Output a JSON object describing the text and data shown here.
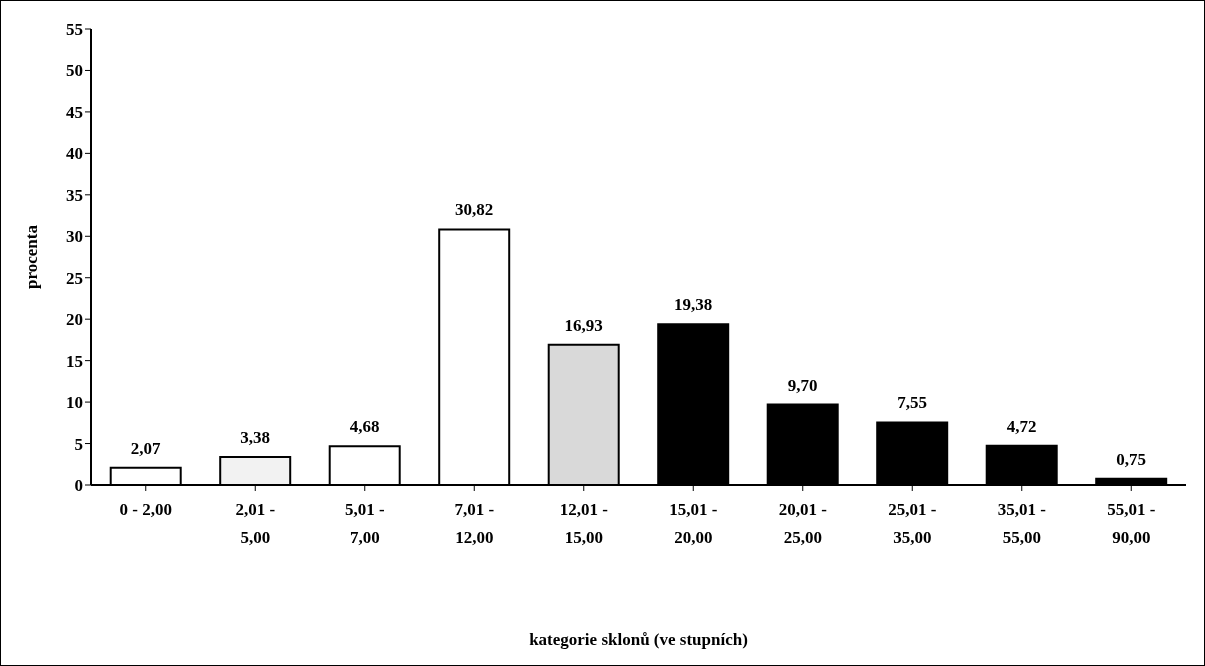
{
  "chart_data": {
    "type": "bar",
    "xlabel": "kategorie sklonů (ve stupních)",
    "ylabel": "procenta",
    "categories": [
      "0 - 2,00",
      "2,01 - 5,00",
      "5,01 - 7,00",
      "7,01 - 12,00",
      "12,01 - 15,00",
      "15,01 - 20,00",
      "20,01 - 25,00",
      "25,01 - 35,00",
      "35,01 - 55,00",
      "55,01 - 90,00"
    ],
    "values": [
      2.07,
      3.38,
      4.68,
      30.82,
      16.93,
      19.38,
      9.7,
      7.55,
      4.72,
      0.75
    ],
    "value_labels": [
      "2,07",
      "3,38",
      "4,68",
      "30,82",
      "16,93",
      "19,38",
      "9,70",
      "7,55",
      "4,72",
      "0,75"
    ],
    "colors": [
      "#ffffff",
      "#f2f2f2",
      "#ffffff",
      "#ffffff",
      "#d9d9d9",
      "#000000",
      "#000000",
      "#000000",
      "#000000",
      "#000000"
    ],
    "ylim": [
      0,
      55
    ],
    "yticks": [
      0,
      5,
      10,
      15,
      20,
      25,
      30,
      35,
      40,
      45,
      50,
      55
    ],
    "grid": false,
    "legend": false
  }
}
